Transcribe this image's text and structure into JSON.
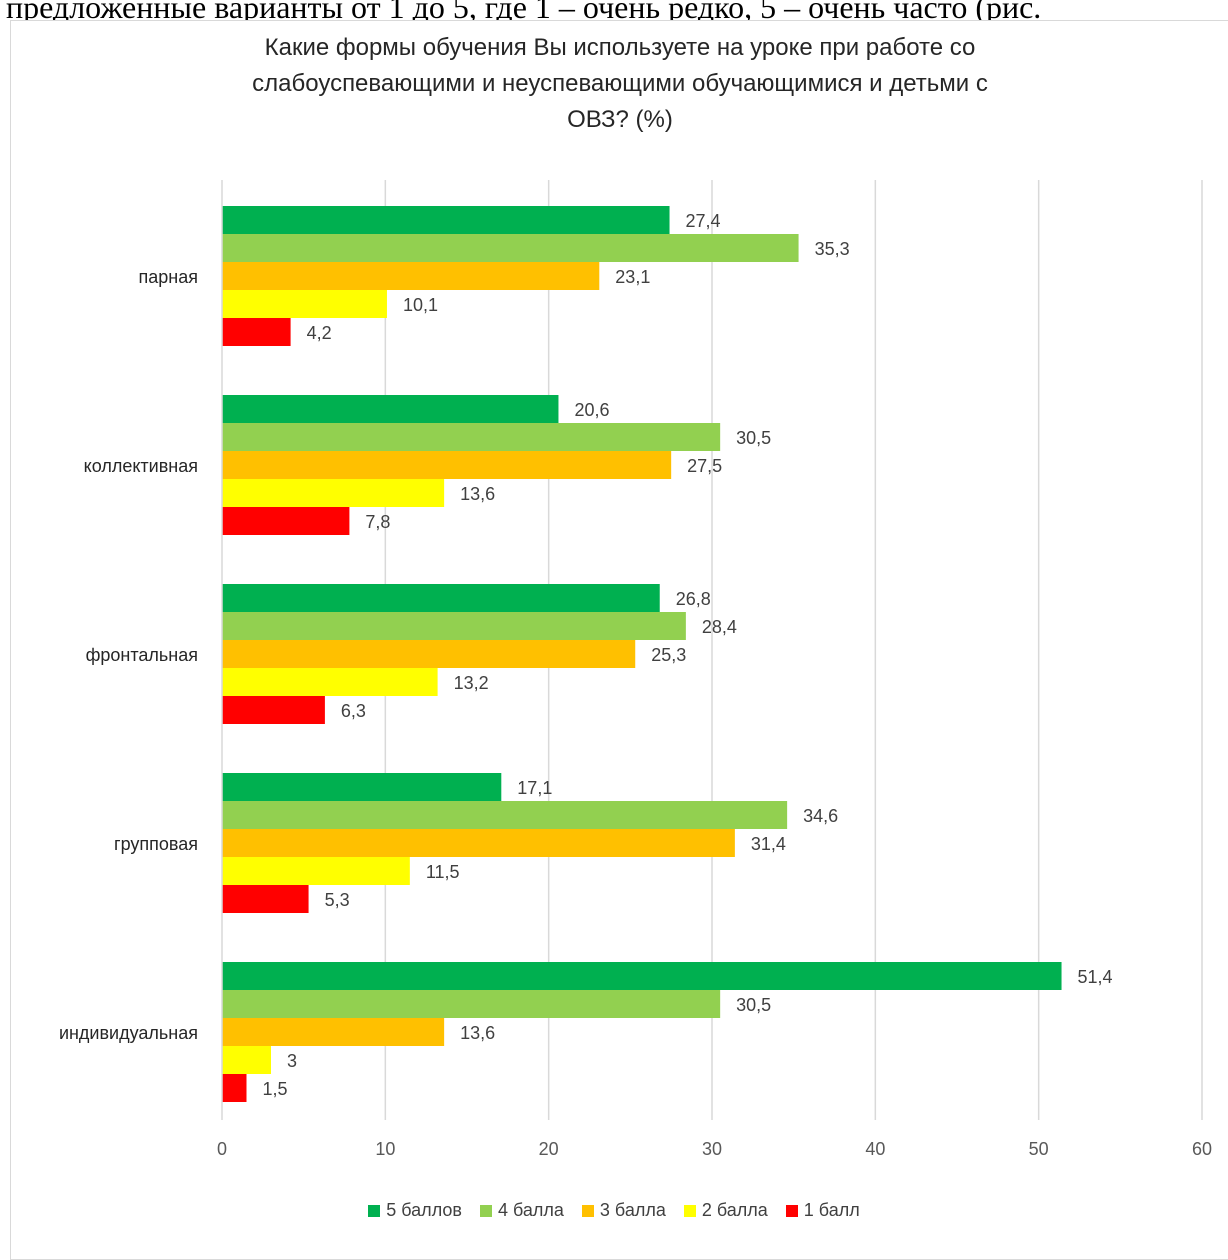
{
  "header_text": "предложенные варианты от 1 до 5, где 1 – очень редко, 5 – очень часто (рис.",
  "chart_data": {
    "type": "bar",
    "orientation": "horizontal",
    "title": "Какие формы обучения Вы используете на уроке при работе со слабоуспевающими и неуспевающими обучающимися и детьми с ОВЗ? (%)",
    "title_lines": [
      "Какие формы обучения Вы используете на уроке при работе со",
      "слабоуспевающими и неуспевающими обучающимися и детьми с",
      "ОВЗ? (%)"
    ],
    "categories": [
      "парная",
      "коллективная",
      "фронтальная",
      "групповая",
      "индивидуальная"
    ],
    "series": [
      {
        "name": "5 баллов",
        "color": "#00b050",
        "values": [
          27.4,
          20.6,
          26.8,
          17.1,
          51.4
        ],
        "labels": [
          "27,4",
          "20,6",
          "26,8",
          "17,1",
          "51,4"
        ]
      },
      {
        "name": "4 балла",
        "color": "#92d050",
        "values": [
          35.3,
          30.5,
          28.4,
          34.6,
          30.5
        ],
        "labels": [
          "35,3",
          "30,5",
          "28,4",
          "34,6",
          "30,5"
        ]
      },
      {
        "name": "3 балла",
        "color": "#ffc000",
        "values": [
          23.1,
          27.5,
          25.3,
          31.4,
          13.6
        ],
        "labels": [
          "23,1",
          "27,5",
          "25,3",
          "31,4",
          "13,6"
        ]
      },
      {
        "name": "2 балла",
        "color": "#ffff00",
        "values": [
          10.1,
          13.6,
          13.2,
          11.5,
          3
        ],
        "labels": [
          "10,1",
          "13,6",
          "13,2",
          "11,5",
          "3"
        ]
      },
      {
        "name": "1 балл",
        "color": "#ff0000",
        "values": [
          4.2,
          7.8,
          6.3,
          5.3,
          1.5
        ],
        "labels": [
          "4,2",
          "7,8",
          "6,3",
          "5,3",
          "1,5"
        ]
      }
    ],
    "xlim": [
      0,
      60
    ],
    "xticks": [
      0,
      10,
      20,
      30,
      40,
      50,
      60
    ],
    "grid": true,
    "legend_position": "bottom"
  }
}
